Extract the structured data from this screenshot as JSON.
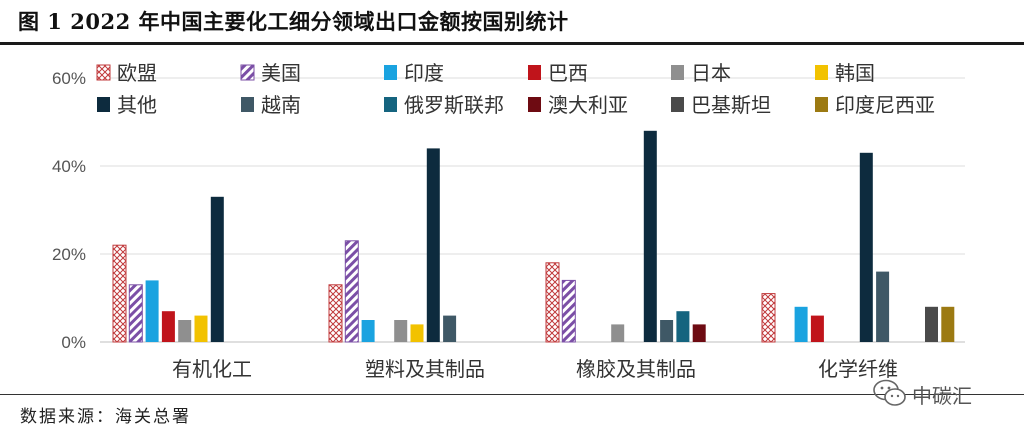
{
  "header": {
    "title": "图 1  2022 年中国主要化工细分领域出口金额按国别统计"
  },
  "footer": {
    "source": "数据来源：海关总署"
  },
  "watermark": {
    "text": "中碳汇"
  },
  "chart_data": {
    "type": "bar",
    "title": "",
    "xlabel": "",
    "ylabel": "",
    "ylim": [
      0,
      60
    ],
    "yticks": [
      "0%",
      "20%",
      "40%",
      "60%"
    ],
    "grid": true,
    "legend_position": "top",
    "categories": [
      "有机化工",
      "塑料及其制品",
      "橡胶及其制品",
      "化学纤维"
    ],
    "series": [
      {
        "name": "欧盟",
        "color": "#c0393b",
        "pattern": "crosshatch",
        "values": [
          22,
          13,
          18,
          11
        ]
      },
      {
        "name": "美国",
        "color": "#7b4fa6",
        "pattern": "diagonal",
        "values": [
          13,
          23,
          14,
          0
        ]
      },
      {
        "name": "印度",
        "color": "#1aa3e0",
        "values": [
          14,
          5,
          0,
          8
        ]
      },
      {
        "name": "巴西",
        "color": "#c0141b",
        "values": [
          7,
          0,
          0,
          6
        ]
      },
      {
        "name": "日本",
        "color": "#8f8f8f",
        "values": [
          5,
          5,
          4,
          0
        ]
      },
      {
        "name": "韩国",
        "color": "#f2c200",
        "values": [
          6,
          4,
          0,
          0
        ]
      },
      {
        "name": "其他",
        "color": "#0d2b3e",
        "values": [
          33,
          44,
          48,
          43
        ]
      },
      {
        "name": "越南",
        "color": "#3f5866",
        "values": [
          0,
          6,
          5,
          16
        ]
      },
      {
        "name": "俄罗斯联邦",
        "color": "#15647f",
        "values": [
          0,
          0,
          7,
          0
        ]
      },
      {
        "name": "澳大利亚",
        "color": "#6e0b12",
        "values": [
          0,
          0,
          4,
          0
        ]
      },
      {
        "name": "巴基斯坦",
        "color": "#4a4a4a",
        "values": [
          0,
          0,
          0,
          8
        ]
      },
      {
        "name": "印度尼西亚",
        "color": "#9c7a12",
        "values": [
          0,
          0,
          0,
          8
        ]
      }
    ]
  }
}
